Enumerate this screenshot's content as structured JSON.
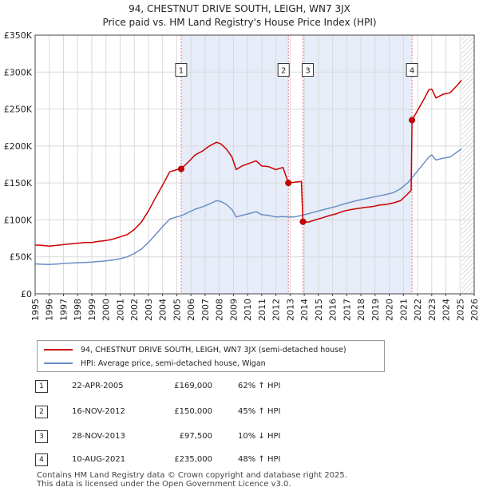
{
  "header": {
    "title_line1": "94, CHESTNUT DRIVE SOUTH, LEIGH, WN7 3JX",
    "title_line2": "Price paid vs. HM Land Registry's House Price Index (HPI)"
  },
  "colors": {
    "price_line": "#cc0000",
    "hpi_line": "#6a8fc4",
    "shade": "#e6ecf8",
    "marker_line": "#e77b8a",
    "grid": "#d9d9d9"
  },
  "chart_data": {
    "type": "line",
    "title": "Price paid vs. HM Land Registry's House Price Index (HPI)",
    "xlabel": "",
    "ylabel": "",
    "xlim": [
      1995,
      2026
    ],
    "ylim": [
      0,
      350000
    ],
    "x_ticks": [
      "1995",
      "1996",
      "1997",
      "1998",
      "1999",
      "2000",
      "2001",
      "2002",
      "2003",
      "2004",
      "2005",
      "2006",
      "2007",
      "2008",
      "2009",
      "2010",
      "2011",
      "2012",
      "2013",
      "2014",
      "2015",
      "2016",
      "2017",
      "2018",
      "2019",
      "2020",
      "2021",
      "2022",
      "2023",
      "2024",
      "2025",
      "2026"
    ],
    "y_ticks": [
      {
        "value": 0,
        "label": "£0"
      },
      {
        "value": 50000,
        "label": "£50K"
      },
      {
        "value": 100000,
        "label": "£100K"
      },
      {
        "value": 150000,
        "label": "£150K"
      },
      {
        "value": 200000,
        "label": "£200K"
      },
      {
        "value": 250000,
        "label": "£250K"
      },
      {
        "value": 300000,
        "label": "£300K"
      },
      {
        "value": 350000,
        "label": "£350K"
      }
    ],
    "shaded_ranges": [
      [
        2005.31,
        2012.88
      ],
      [
        2013.91,
        2021.61
      ]
    ],
    "hatched_from": 2025.1,
    "series": [
      {
        "name": "94, CHESTNUT DRIVE SOUTH, LEIGH, WN7 3JX (semi-detached house)",
        "color": "#cc0000",
        "points": [
          [
            1995,
            66000
          ],
          [
            1995.5,
            65500
          ],
          [
            1996,
            64500
          ],
          [
            1996.5,
            65500
          ],
          [
            1997,
            66500
          ],
          [
            1997.5,
            67500
          ],
          [
            1998,
            68500
          ],
          [
            1998.5,
            69500
          ],
          [
            1999,
            69500
          ],
          [
            1999.5,
            71000
          ],
          [
            2000,
            72000
          ],
          [
            2000.5,
            74000
          ],
          [
            2001,
            77000
          ],
          [
            2001.5,
            80000
          ],
          [
            2002,
            87000
          ],
          [
            2002.5,
            97000
          ],
          [
            2003,
            112000
          ],
          [
            2003.5,
            130000
          ],
          [
            2004,
            147000
          ],
          [
            2004.5,
            165000
          ],
          [
            2005,
            168000
          ],
          [
            2005.31,
            169000
          ],
          [
            2005.8,
            178000
          ],
          [
            2006.3,
            188000
          ],
          [
            2006.8,
            193000
          ],
          [
            2007.3,
            200000
          ],
          [
            2007.8,
            205000
          ],
          [
            2008.1,
            203000
          ],
          [
            2008.5,
            196000
          ],
          [
            2008.9,
            185000
          ],
          [
            2009.2,
            168000
          ],
          [
            2009.6,
            173000
          ],
          [
            2010.2,
            177000
          ],
          [
            2010.6,
            180000
          ],
          [
            2011,
            173000
          ],
          [
            2011.5,
            172000
          ],
          [
            2012,
            168000
          ],
          [
            2012.5,
            171000
          ],
          [
            2012.88,
            150000
          ],
          [
            2013.3,
            151000
          ],
          [
            2013.8,
            152000
          ],
          [
            2013.91,
            97500
          ],
          [
            2014.3,
            97000
          ],
          [
            2014.8,
            100000
          ],
          [
            2015.3,
            103000
          ],
          [
            2015.8,
            106000
          ],
          [
            2016.3,
            108500
          ],
          [
            2016.8,
            112000
          ],
          [
            2017.3,
            114000
          ],
          [
            2017.8,
            115500
          ],
          [
            2018.3,
            117000
          ],
          [
            2018.8,
            118000
          ],
          [
            2019.3,
            120000
          ],
          [
            2019.8,
            121000
          ],
          [
            2020.3,
            123000
          ],
          [
            2020.8,
            126000
          ],
          [
            2021.3,
            135000
          ],
          [
            2021.55,
            140000
          ],
          [
            2021.61,
            235000
          ],
          [
            2022,
            248000
          ],
          [
            2022.5,
            265000
          ],
          [
            2022.8,
            276000
          ],
          [
            2023,
            277000
          ],
          [
            2023.3,
            265000
          ],
          [
            2023.8,
            270000
          ],
          [
            2024.3,
            272000
          ],
          [
            2024.8,
            282000
          ],
          [
            2025.1,
            289000
          ]
        ]
      },
      {
        "name": "HPI: Average price, semi-detached house, Wigan",
        "color": "#6a8fc4",
        "points": [
          [
            1995,
            40500
          ],
          [
            1995.5,
            40000
          ],
          [
            1996,
            39800
          ],
          [
            1996.5,
            40300
          ],
          [
            1997,
            41000
          ],
          [
            1997.5,
            41600
          ],
          [
            1998,
            42000
          ],
          [
            1998.5,
            42500
          ],
          [
            1999,
            43000
          ],
          [
            1999.5,
            43800
          ],
          [
            2000,
            44500
          ],
          [
            2000.5,
            45800
          ],
          [
            2001,
            47500
          ],
          [
            2001.5,
            50000
          ],
          [
            2002,
            54500
          ],
          [
            2002.5,
            60500
          ],
          [
            2003,
            69500
          ],
          [
            2003.5,
            80000
          ],
          [
            2004,
            91000
          ],
          [
            2004.5,
            101000
          ],
          [
            2005,
            104000
          ],
          [
            2005.31,
            105500
          ],
          [
            2005.8,
            110000
          ],
          [
            2006.3,
            114500
          ],
          [
            2006.8,
            117500
          ],
          [
            2007.3,
            121500
          ],
          [
            2007.8,
            126000
          ],
          [
            2008.1,
            125000
          ],
          [
            2008.5,
            121000
          ],
          [
            2008.9,
            114000
          ],
          [
            2009.2,
            104000
          ],
          [
            2009.6,
            106000
          ],
          [
            2010.2,
            109000
          ],
          [
            2010.6,
            111000
          ],
          [
            2011,
            107000
          ],
          [
            2011.5,
            106000
          ],
          [
            2012,
            104000
          ],
          [
            2012.5,
            104500
          ],
          [
            2012.88,
            104000
          ],
          [
            2013.3,
            104000
          ],
          [
            2013.8,
            106000
          ],
          [
            2014.3,
            108500
          ],
          [
            2014.8,
            111000
          ],
          [
            2015.3,
            113500
          ],
          [
            2015.8,
            116000
          ],
          [
            2016.3,
            118500
          ],
          [
            2016.8,
            121500
          ],
          [
            2017.3,
            124000
          ],
          [
            2017.8,
            126500
          ],
          [
            2018.3,
            128500
          ],
          [
            2018.8,
            130500
          ],
          [
            2019.3,
            132500
          ],
          [
            2019.8,
            134500
          ],
          [
            2020.3,
            137000
          ],
          [
            2020.8,
            142000
          ],
          [
            2021.3,
            150000
          ],
          [
            2021.61,
            157000
          ],
          [
            2022,
            166000
          ],
          [
            2022.5,
            178000
          ],
          [
            2022.8,
            185000
          ],
          [
            2023,
            188000
          ],
          [
            2023.3,
            181000
          ],
          [
            2023.8,
            183500
          ],
          [
            2024.3,
            185000
          ],
          [
            2024.8,
            192000
          ],
          [
            2025.1,
            196000
          ]
        ]
      }
    ],
    "sales": [
      {
        "label": "1",
        "x": 2005.31,
        "value": 169000,
        "date": "22-APR-2005",
        "price": "£169,000",
        "hpi": "62% ↑ HPI",
        "box_value": 303000
      },
      {
        "label": "2",
        "x": 2012.88,
        "value": 150000,
        "date": "16-NOV-2012",
        "price": "£150,000",
        "hpi": "45% ↑ HPI",
        "box_value": 303000
      },
      {
        "label": "3",
        "x": 2013.91,
        "value": 97500,
        "date": "28-NOV-2013",
        "price": "£97,500",
        "hpi": "10% ↓ HPI",
        "box_value": 303000
      },
      {
        "label": "4",
        "x": 2021.61,
        "value": 235000,
        "date": "10-AUG-2021",
        "price": "£235,000",
        "hpi": "48% ↑ HPI",
        "box_value": 303000
      }
    ]
  },
  "legend": {
    "price_label": "94, CHESTNUT DRIVE SOUTH, LEIGH, WN7 3JX (semi-detached house)",
    "hpi_label": "HPI: Average price, semi-detached house, Wigan"
  },
  "footer": {
    "line1": "Contains HM Land Registry data © Crown copyright and database right 2025.",
    "line2": "This data is licensed under the Open Government Licence v3.0."
  }
}
